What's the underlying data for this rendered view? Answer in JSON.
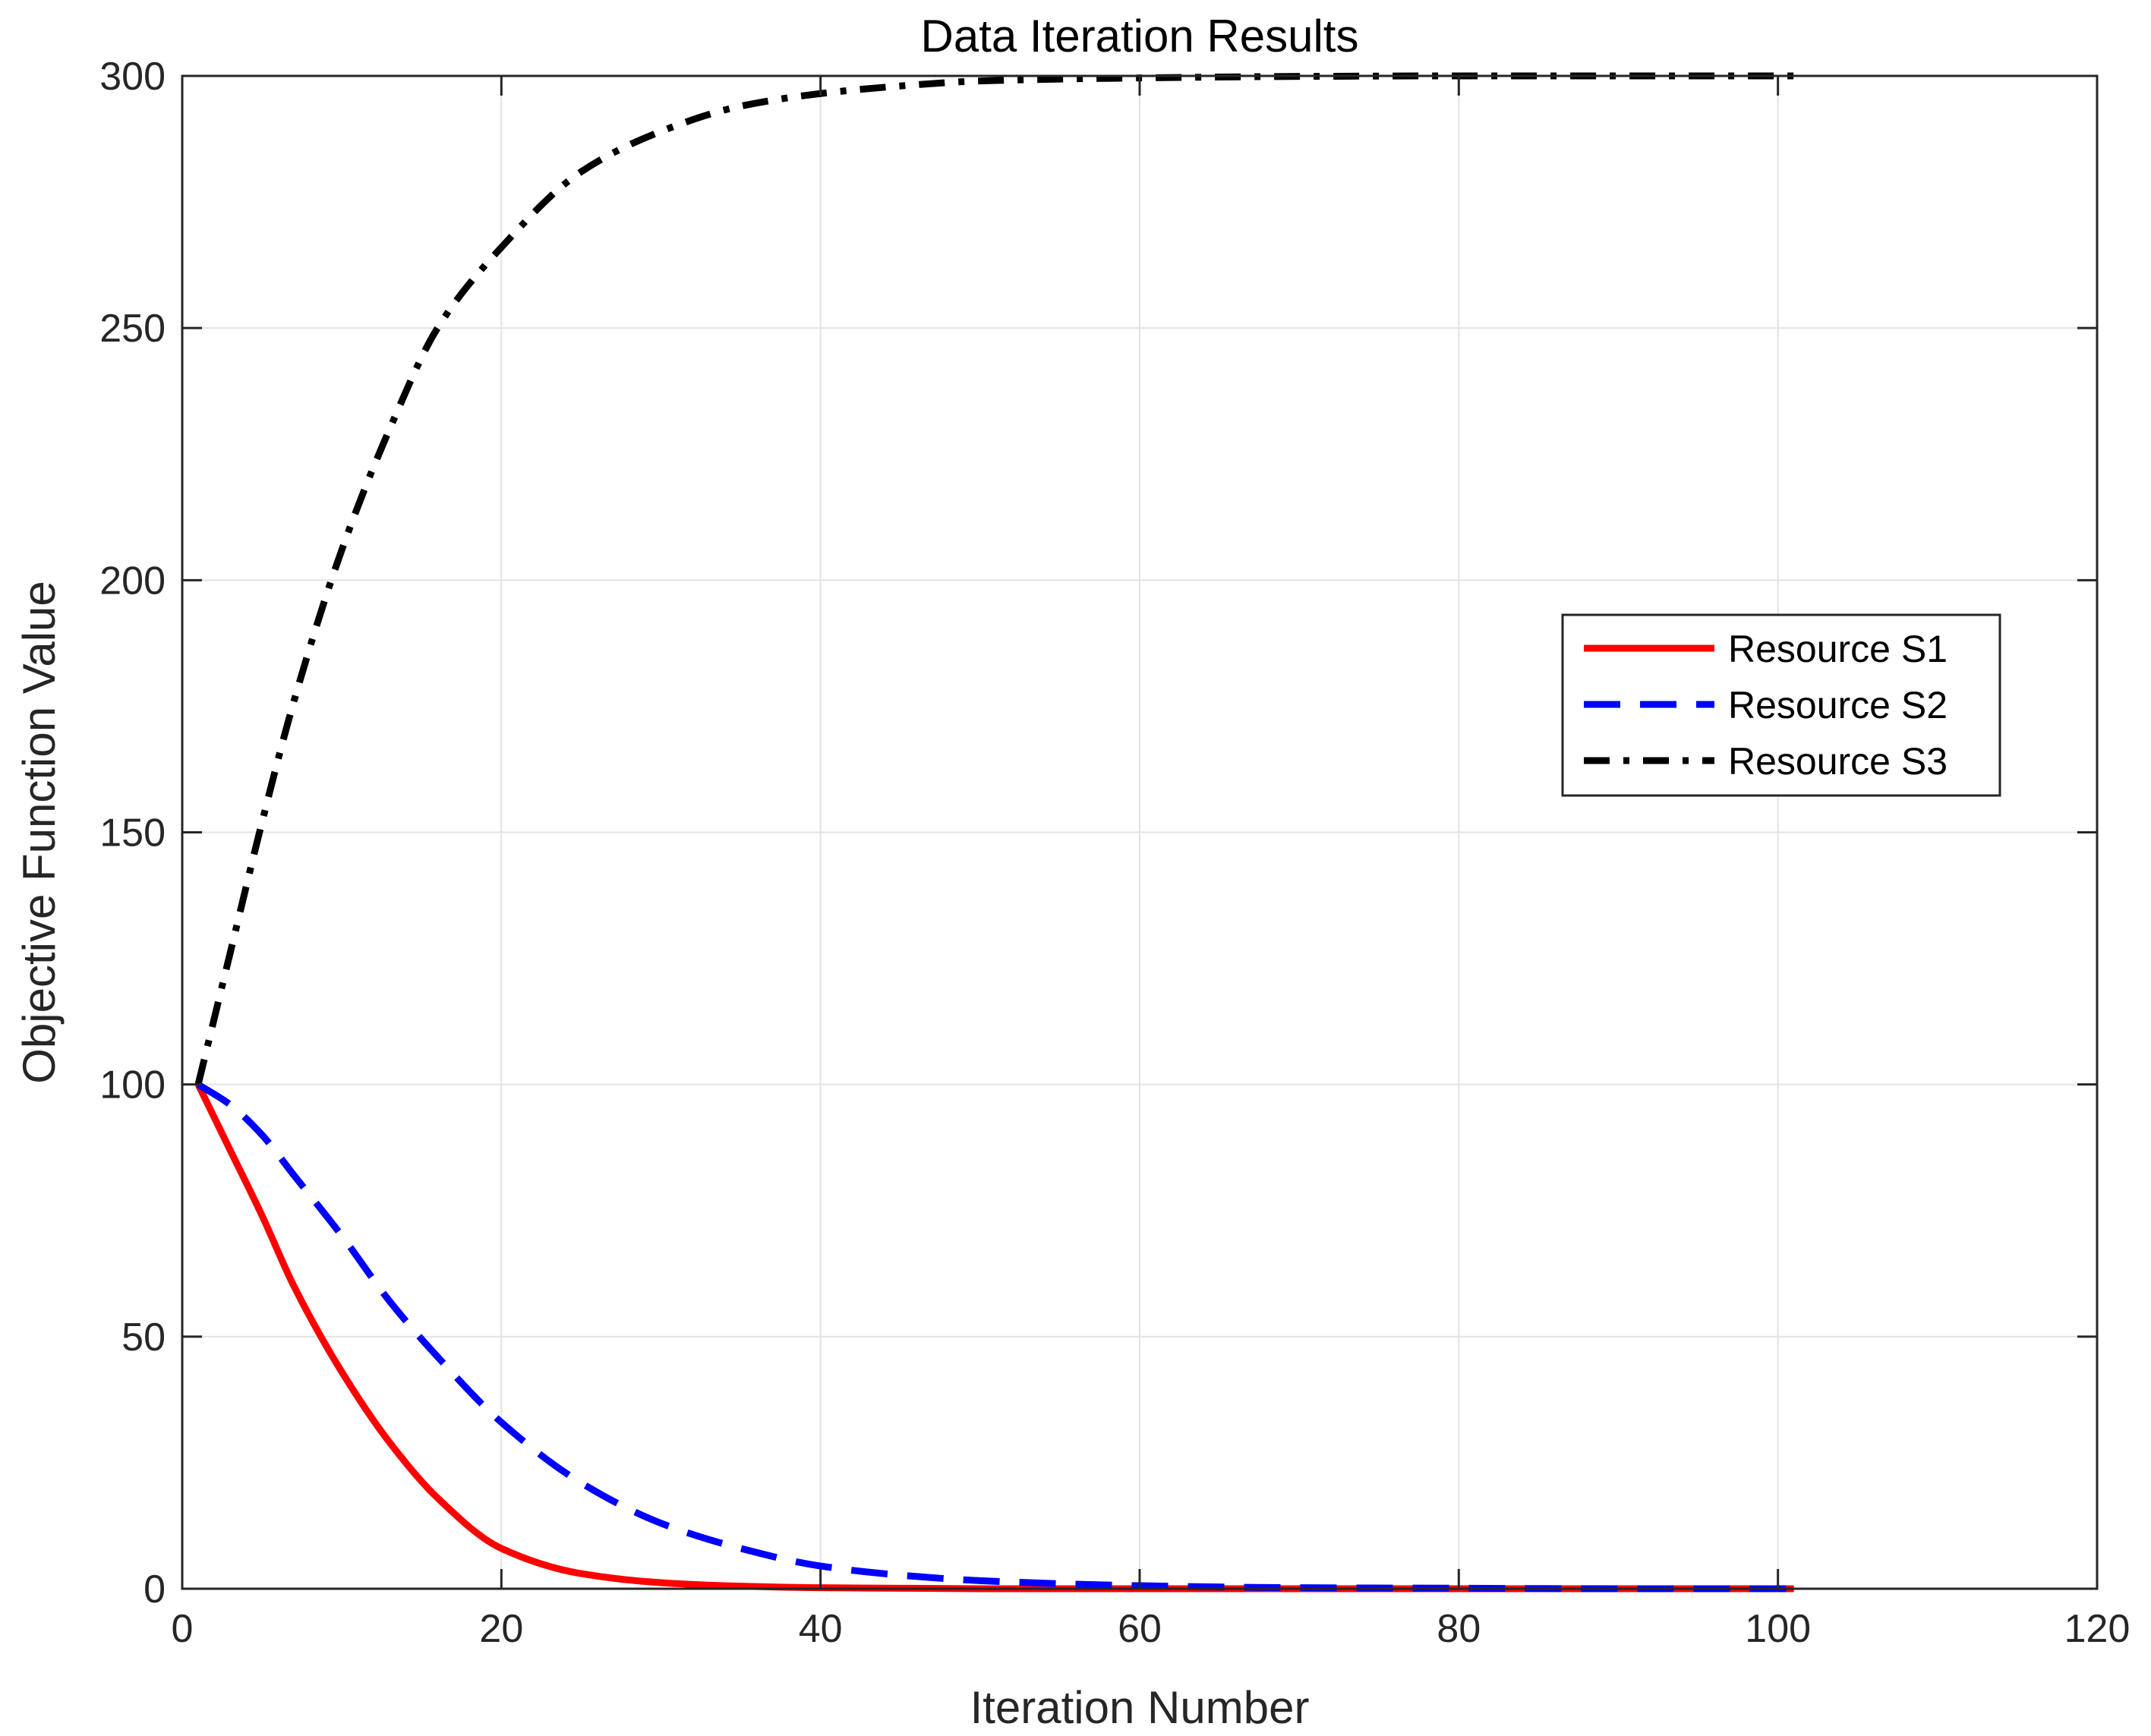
{
  "chart_data": {
    "type": "line",
    "title": "Data Iteration Results",
    "xlabel": "Iteration Number",
    "ylabel": "Objective Function Value",
    "xlim": [
      0,
      120
    ],
    "ylim": [
      0,
      300
    ],
    "xticks": [
      0,
      20,
      40,
      60,
      80,
      100,
      120
    ],
    "yticks": [
      0,
      50,
      100,
      150,
      200,
      250,
      300
    ],
    "xtick_labels": [
      "0",
      "20",
      "40",
      "60",
      "80",
      "100",
      "120"
    ],
    "ytick_labels": [
      "0",
      "50",
      "100",
      "150",
      "200",
      "250",
      "300"
    ],
    "grid": true,
    "legend_position": "center-right",
    "x": [
      1,
      3,
      5,
      7,
      10,
      13,
      16,
      20,
      25,
      30,
      35,
      40,
      45,
      50,
      60,
      70,
      80,
      90,
      101
    ],
    "series": [
      {
        "name": "Resource S1",
        "color": "#ff0000",
        "style": "solid",
        "values": [
          100,
          87,
          74,
          60,
          43,
          29,
          18,
          8,
          3,
          1.2,
          0.5,
          0.2,
          0.1,
          0,
          0,
          0,
          0,
          0,
          0
        ]
      },
      {
        "name": "Resource S2",
        "color": "#0000ff",
        "style": "dashed",
        "values": [
          100,
          96,
          90,
          82,
          70,
          57,
          46,
          33,
          21,
          13,
          8,
          4.5,
          2.7,
          1.6,
          0.6,
          0.2,
          0.1,
          0,
          0
        ]
      },
      {
        "name": "Resource S3",
        "color": "#000000",
        "style": "dashdot",
        "values": [
          100,
          126,
          152,
          176,
          206,
          230,
          250,
          266,
          281,
          289,
          294,
          296.5,
          298,
          299,
          299.6,
          299.9,
          300,
          300,
          300
        ]
      }
    ]
  }
}
